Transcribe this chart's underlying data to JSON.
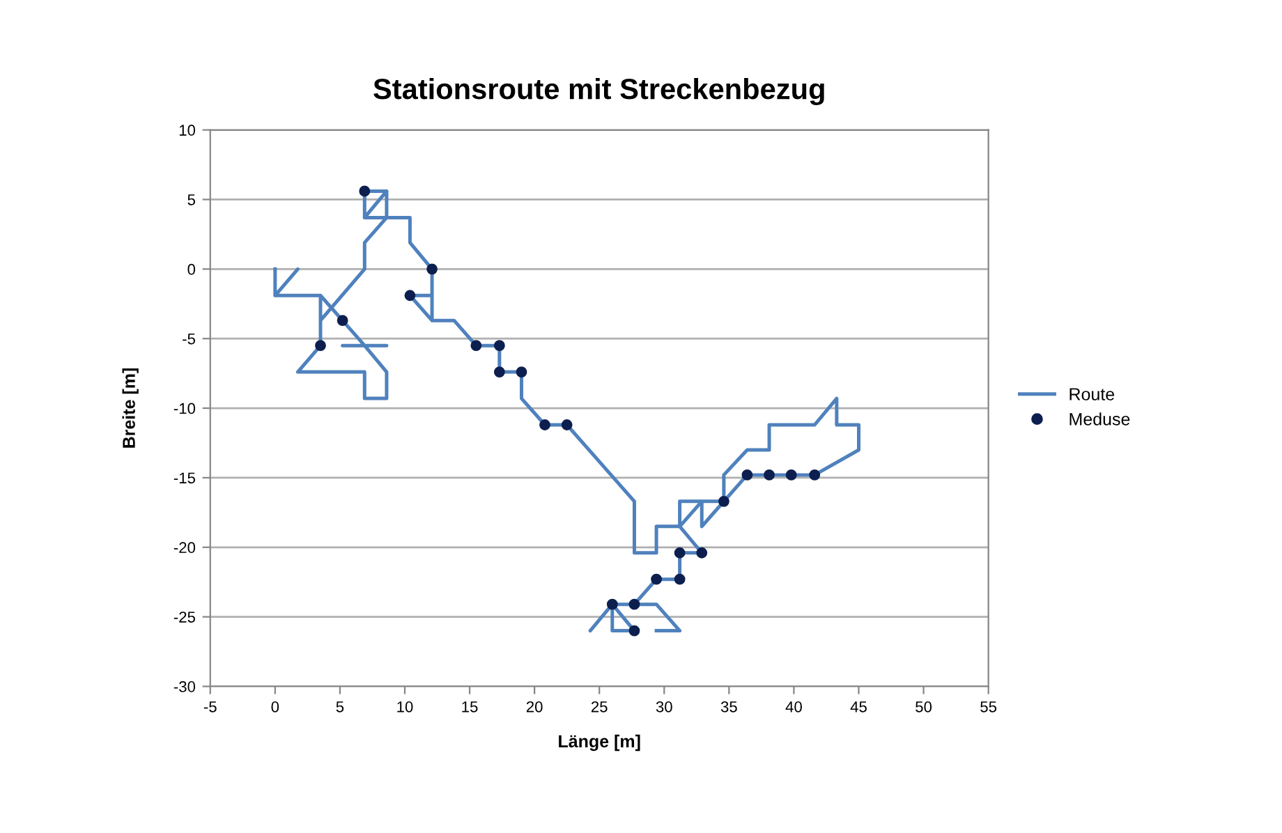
{
  "chart_data": {
    "type": "line",
    "title": "Stationsroute mit Streckenbezug",
    "xlabel": "Länge [m]",
    "ylabel": "Breite [m]",
    "xlim": [
      -5,
      55
    ],
    "xticks": [
      -5,
      0,
      5,
      10,
      15,
      20,
      25,
      30,
      35,
      40,
      45,
      50,
      55
    ],
    "ylim": [
      -30,
      10
    ],
    "yticks": [
      -30,
      -25,
      -20,
      -15,
      -10,
      -5,
      0,
      5,
      10
    ],
    "grid": "y",
    "legend": "right",
    "series": [
      {
        "name": "Route",
        "color": "#4f81bd",
        "marker": "none",
        "line_style": "solid",
        "x": [
          0,
          0,
          1.75,
          0,
          3.5,
          5.2,
          6.9,
          5.2,
          8.6,
          6.9,
          8.6,
          8.6,
          6.9,
          6.9,
          1.75,
          3.5,
          3.5,
          3.5,
          6.9,
          6.9,
          8.6,
          8.6,
          6.9,
          6.9,
          8.6,
          6.9,
          10.4,
          10.4,
          12.1,
          12.1,
          10.4,
          12.1,
          12.1,
          13.8,
          15.5,
          17.3,
          17.3,
          19.0,
          19.0,
          20.8,
          22.5,
          24.2,
          27.7,
          27.7,
          29.4,
          29.4,
          31.2,
          31.2,
          34.6,
          34.6,
          36.4,
          38.1,
          38.1,
          41.6,
          43.3,
          43.3,
          45.0,
          45.0,
          41.6,
          36.4,
          32.9,
          32.9,
          31.2,
          32.9,
          31.2,
          31.2,
          29.4,
          27.7,
          26.0,
          26.0,
          27.7,
          26.0,
          24.3,
          26.0,
          29.4,
          31.2,
          29.4
        ],
        "values": [
          0,
          -1.9,
          0,
          -1.9,
          -1.9,
          -3.7,
          -5.5,
          -5.5,
          -5.5,
          -5.5,
          -7.4,
          -9.3,
          -9.3,
          -7.4,
          -7.4,
          -5.5,
          -1.9,
          -3.7,
          0,
          1.9,
          3.7,
          5.6,
          5.6,
          3.7,
          5.6,
          3.7,
          3.7,
          1.9,
          0,
          -3.7,
          -1.9,
          -1.9,
          -3.7,
          -3.7,
          -5.5,
          -5.5,
          -7.4,
          -7.4,
          -9.3,
          -11.2,
          -11.2,
          -13.0,
          -16.7,
          -20.4,
          -20.4,
          -18.5,
          -18.5,
          -16.7,
          -16.7,
          -14.8,
          -13.0,
          -13.0,
          -11.2,
          -11.2,
          -9.3,
          -11.2,
          -11.2,
          -13.0,
          -14.8,
          -14.8,
          -18.5,
          -16.7,
          -18.5,
          -20.4,
          -20.4,
          -22.3,
          -22.3,
          -24.1,
          -24.1,
          -26.0,
          -26.0,
          -24.1,
          -26.0,
          -24.1,
          -24.1,
          -26.0,
          -26.0
        ]
      },
      {
        "name": "Meduse",
        "type": "scatter",
        "color": "#0d1f4f",
        "marker": "circle",
        "x": [
          6.9,
          12.1,
          10.4,
          5.2,
          3.5,
          15.5,
          17.3,
          17.3,
          19.0,
          20.8,
          22.5,
          34.6,
          36.4,
          38.1,
          39.8,
          41.6,
          31.2,
          32.9,
          29.4,
          31.2,
          26.0,
          27.7,
          27.7
        ],
        "values": [
          5.6,
          0,
          -1.9,
          -3.7,
          -5.5,
          -5.5,
          -5.5,
          -7.4,
          -7.4,
          -11.2,
          -11.2,
          -16.7,
          -14.8,
          -14.8,
          -14.8,
          -14.8,
          -20.4,
          -20.4,
          -22.3,
          -22.3,
          -24.1,
          -24.1,
          -26.0
        ]
      }
    ]
  }
}
